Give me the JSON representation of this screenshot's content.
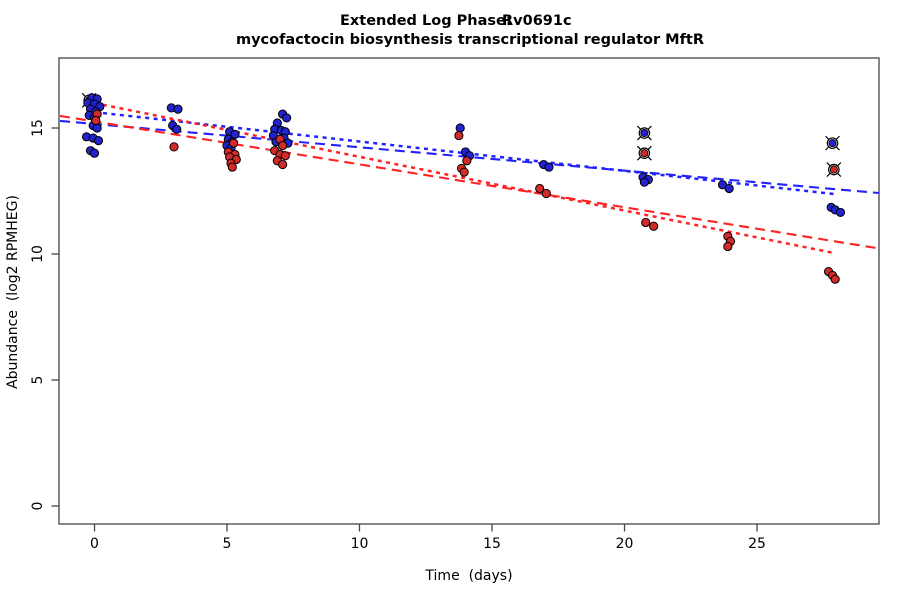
{
  "title": {
    "line1_left": "Extended Log Phase:",
    "line1_right": "Rv0691c",
    "line2": "mycofactocin biosynthesis transcriptional regulator MftR"
  },
  "chart_data": {
    "type": "scatter",
    "title": "Extended Log Phase: Rv0691c — mycofactocin biosynthesis transcriptional regulator MftR",
    "xlabel": "Time  (days)",
    "ylabel": "Abundance  (log2 RPMHEG)",
    "xlim": [
      -1.3,
      29.6
    ],
    "ylim": [
      -0.7,
      17.8
    ],
    "x_ticks": [
      0,
      5,
      10,
      15,
      20,
      25
    ],
    "y_ticks": [
      0,
      5,
      10,
      15
    ],
    "grid": false,
    "legend_position": "none",
    "point_style": "filled circle, black outline",
    "series": [
      {
        "name": "blue-condition",
        "color": "#2222CF",
        "points": [
          [
            -0.1,
            16.2
          ],
          [
            0.1,
            16.15
          ],
          [
            -0.25,
            16.0
          ],
          [
            0.0,
            15.95
          ],
          [
            0.2,
            15.85
          ],
          [
            -0.15,
            15.75
          ],
          [
            0.05,
            15.65
          ],
          [
            -0.2,
            15.5
          ],
          [
            0.0,
            15.4
          ],
          [
            -0.05,
            15.1
          ],
          [
            0.1,
            15.0
          ],
          [
            -0.3,
            14.65
          ],
          [
            -0.05,
            14.6
          ],
          [
            0.15,
            14.5
          ],
          [
            -0.15,
            14.1
          ],
          [
            0.0,
            14.0
          ],
          [
            2.9,
            15.8
          ],
          [
            3.15,
            15.75
          ],
          [
            2.95,
            15.1
          ],
          [
            3.1,
            14.95
          ],
          [
            5.1,
            14.85
          ],
          [
            5.3,
            14.75
          ],
          [
            5.05,
            14.55
          ],
          [
            5.2,
            14.45
          ],
          [
            5.0,
            14.3
          ],
          [
            5.15,
            14.2
          ],
          [
            7.1,
            15.55
          ],
          [
            7.25,
            15.4
          ],
          [
            6.9,
            15.2
          ],
          [
            6.8,
            14.95
          ],
          [
            7.05,
            14.9
          ],
          [
            7.2,
            14.85
          ],
          [
            6.75,
            14.7
          ],
          [
            7.15,
            14.6
          ],
          [
            6.85,
            14.45
          ],
          [
            7.3,
            14.4
          ],
          [
            13.8,
            15.0
          ],
          [
            14.0,
            14.05
          ],
          [
            14.15,
            13.9
          ],
          [
            16.95,
            13.55
          ],
          [
            17.15,
            13.45
          ],
          [
            20.7,
            13.05
          ],
          [
            20.9,
            12.95
          ],
          [
            20.75,
            12.85
          ],
          [
            23.7,
            12.75
          ],
          [
            23.95,
            12.6
          ],
          [
            27.8,
            11.85
          ],
          [
            27.95,
            11.75
          ],
          [
            28.15,
            11.65
          ]
        ]
      },
      {
        "name": "red-condition",
        "color": "#D42A2A",
        "points": [
          [
            0.1,
            15.55
          ],
          [
            0.05,
            15.3
          ],
          [
            3.0,
            14.25
          ],
          [
            5.25,
            14.4
          ],
          [
            5.05,
            14.05
          ],
          [
            5.3,
            13.95
          ],
          [
            5.1,
            13.85
          ],
          [
            5.35,
            13.75
          ],
          [
            5.15,
            13.6
          ],
          [
            5.2,
            13.45
          ],
          [
            7.0,
            14.55
          ],
          [
            7.1,
            14.3
          ],
          [
            6.8,
            14.1
          ],
          [
            7.0,
            13.95
          ],
          [
            7.2,
            13.9
          ],
          [
            6.9,
            13.7
          ],
          [
            7.1,
            13.55
          ],
          [
            13.75,
            14.7
          ],
          [
            14.05,
            13.7
          ],
          [
            13.85,
            13.4
          ],
          [
            13.95,
            13.25
          ],
          [
            16.8,
            12.6
          ],
          [
            17.05,
            12.4
          ],
          [
            20.8,
            11.25
          ],
          [
            21.1,
            11.1
          ],
          [
            23.9,
            10.7
          ],
          [
            24.0,
            10.5
          ],
          [
            23.9,
            10.3
          ],
          [
            27.7,
            9.3
          ],
          [
            27.85,
            9.15
          ],
          [
            27.95,
            9.0
          ]
        ]
      }
    ],
    "outlier_points": [
      {
        "series": "blue-condition",
        "color": "#2222CF",
        "x": -0.2,
        "y": 16.1
      },
      {
        "series": "blue-condition",
        "color": "#2222CF",
        "x": 20.75,
        "y": 14.8
      },
      {
        "series": "blue-condition",
        "color": "#2222CF",
        "x": 27.85,
        "y": 14.4
      },
      {
        "series": "red-condition",
        "color": "#D42A2A",
        "x": 20.75,
        "y": 14.0
      },
      {
        "series": "red-condition",
        "color": "#D42A2A",
        "x": 27.9,
        "y": 13.35
      }
    ],
    "trend_lines": [
      {
        "name": "blue-dashed-fit",
        "color": "#2222FF",
        "style": "dashed",
        "x1": -1.3,
        "y1": 15.28,
        "x2": 29.6,
        "y2": 12.42
      },
      {
        "name": "blue-dotted-fit",
        "color": "#2222FF",
        "style": "dotted",
        "x1": 0.0,
        "y1": 15.63,
        "x2": 27.9,
        "y2": 12.38
      },
      {
        "name": "red-dashed-fit",
        "color": "#FF2222",
        "style": "dashed",
        "x1": -1.3,
        "y1": 15.48,
        "x2": 29.6,
        "y2": 10.22
      },
      {
        "name": "red-dotted-fit",
        "color": "#FF2222",
        "style": "dotted",
        "x1": 0.0,
        "y1": 15.99,
        "x2": 27.9,
        "y2": 10.04
      }
    ]
  },
  "colors": {
    "background": "#FFFFFF",
    "box_border": "#444444",
    "point_blue": "#2222CF",
    "point_red": "#D42A2A",
    "line_blue": "#2222FF",
    "line_red": "#FF2222"
  }
}
